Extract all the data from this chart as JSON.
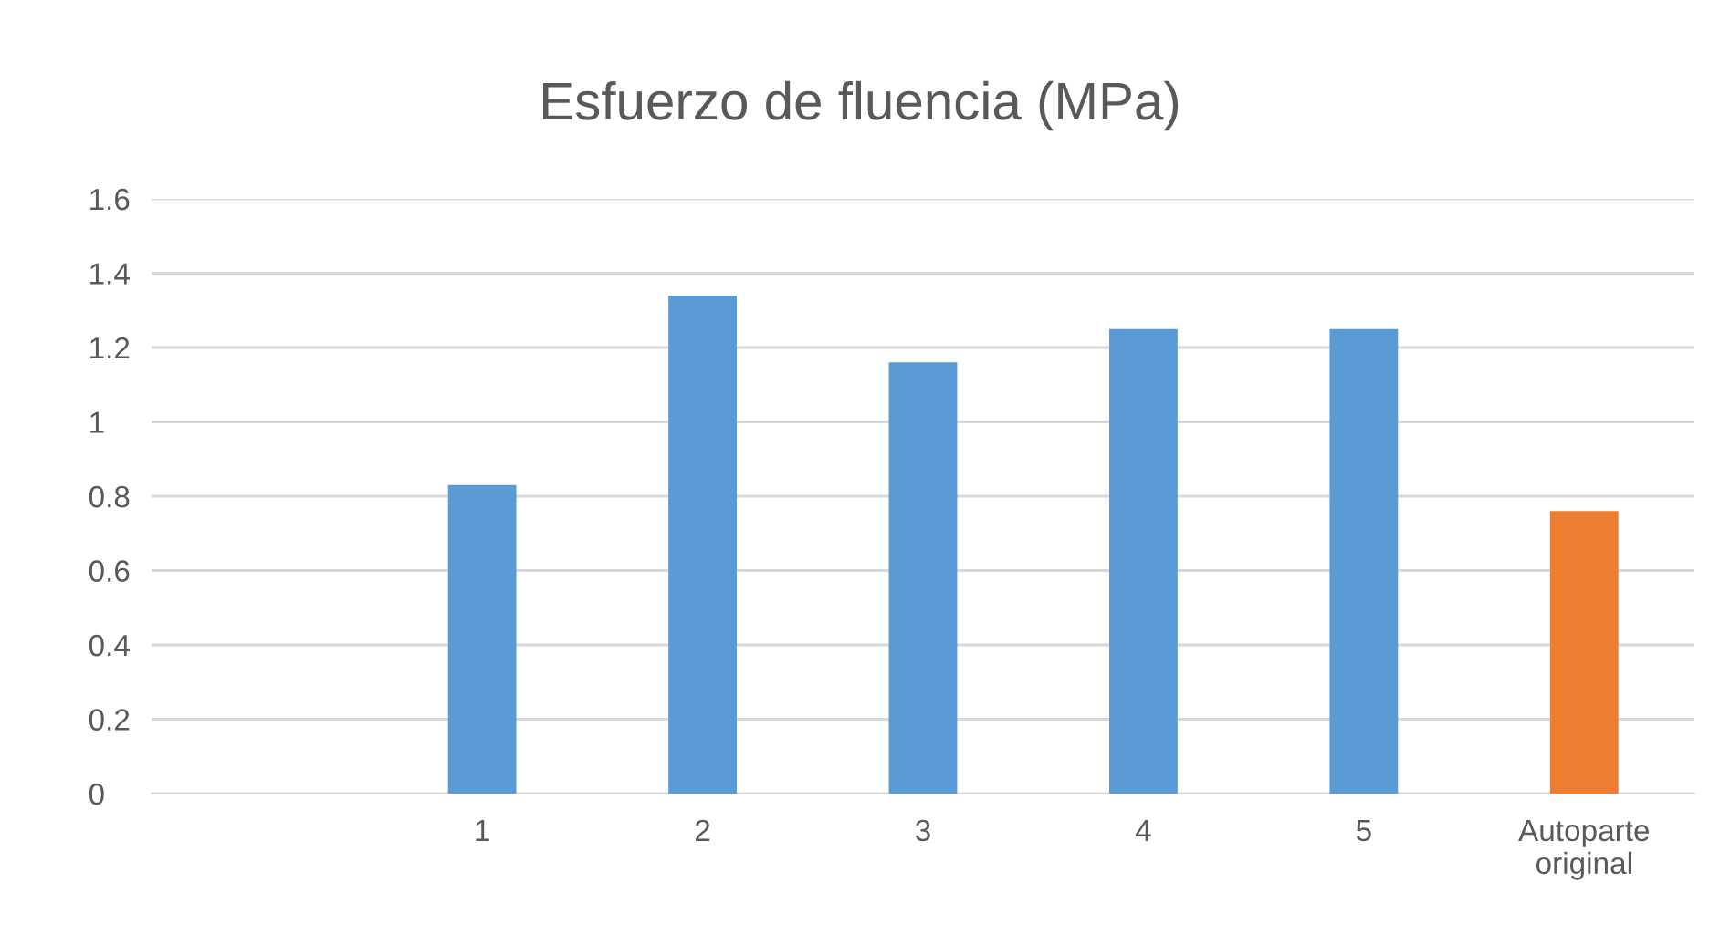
{
  "chart_data": {
    "type": "bar",
    "title": "Esfuerzo de fluencia (MPa)",
    "categories": [
      null,
      "1",
      "2",
      "3",
      "4",
      "5",
      "Autoparte original"
    ],
    "values": [
      null,
      0.83,
      1.34,
      1.16,
      1.25,
      1.25,
      0.76
    ],
    "colors": [
      "#5b9bd5",
      "#5b9bd5",
      "#5b9bd5",
      "#5b9bd5",
      "#5b9bd5",
      "#5b9bd5",
      "#ed7d31"
    ],
    "ylim": [
      0,
      1.6
    ],
    "yticks": [
      0,
      {
        "value": 0.2,
        "label": "0.2"
      },
      {
        "value": 0.4,
        "label": "0.4"
      },
      {
        "value": 0.6,
        "label": "0.6"
      },
      {
        "value": 0.8,
        "label": "0.8"
      },
      1,
      {
        "value": 1.2,
        "label": "1.2"
      },
      {
        "value": 1.4,
        "label": "1.4"
      },
      {
        "value": 1.6,
        "label": "1.6"
      }
    ],
    "grid": "y",
    "legend": false
  }
}
